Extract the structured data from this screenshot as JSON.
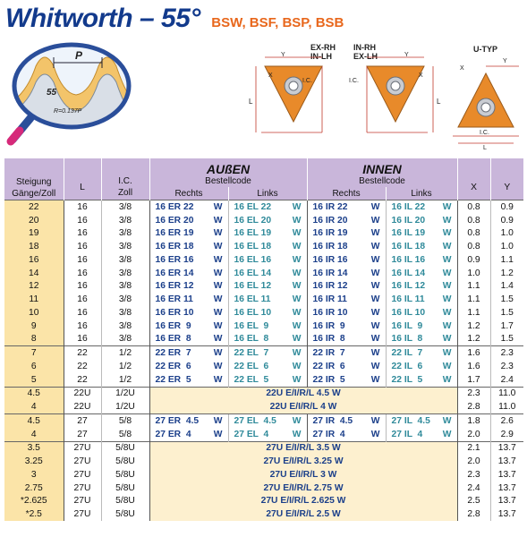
{
  "header": {
    "title": "Whitworth – 55°",
    "subtitle": "BSW, BSF, BSP, BSB"
  },
  "illustration": {
    "pitch_label": "P",
    "angle_label": "55",
    "radius_label": "R=0.137P"
  },
  "diagrams": [
    {
      "label1": "EX-RH",
      "label2": "IN-LH",
      "ic": "I.C.",
      "x": "X",
      "y": "Y",
      "l": "L"
    },
    {
      "label1": "IN-RH",
      "label2": "EX-LH",
      "ic": "I.C.",
      "x": "X",
      "y": "Y",
      "l": "L"
    },
    {
      "label1": "U-TYP",
      "label2": "",
      "ic": "I.C.",
      "x": "X",
      "y": "Y",
      "l": "L"
    }
  ],
  "colors": {
    "header_bg": "#c9b6da",
    "steigung_bg": "#fbe4a8",
    "title_blue": "#123a8c",
    "subtitle_orange": "#e8671c",
    "code_blue": "#1b3f8a",
    "code_teal": "#2f8a9a",
    "insert_orange": "#e88a2a"
  },
  "table": {
    "head": {
      "steigung1": "Steigung",
      "steigung2": "Gänge/Zoll",
      "l": "L",
      "ic1": "I.C.",
      "ic2": "Zoll",
      "aussen": "AUßEN",
      "innen": "INNEN",
      "bestellcode": "Bestellcode",
      "rechts": "Rechts",
      "links": "Links",
      "x": "X",
      "y": "Y"
    },
    "rows": [
      {
        "s": "22",
        "l": "16",
        "ic": "3/8",
        "ar": "16 ER 22",
        "al": "16 EL 22",
        "ir": "16 IR 22",
        "il": "16 IL 22",
        "w": "W",
        "x": "0.8",
        "y": "0.9"
      },
      {
        "s": "20",
        "l": "16",
        "ic": "3/8",
        "ar": "16 ER 20",
        "al": "16 EL 20",
        "ir": "16 IR 20",
        "il": "16 IL 20",
        "w": "W",
        "x": "0.8",
        "y": "0.9"
      },
      {
        "s": "19",
        "l": "16",
        "ic": "3/8",
        "ar": "16 ER 19",
        "al": "16 EL 19",
        "ir": "16 IR 19",
        "il": "16 IL 19",
        "w": "W",
        "x": "0.8",
        "y": "1.0"
      },
      {
        "s": "18",
        "l": "16",
        "ic": "3/8",
        "ar": "16 ER 18",
        "al": "16 EL 18",
        "ir": "16 IR 18",
        "il": "16 IL 18",
        "w": "W",
        "x": "0.8",
        "y": "1.0"
      },
      {
        "s": "16",
        "l": "16",
        "ic": "3/8",
        "ar": "16 ER 16",
        "al": "16 EL 16",
        "ir": "16 IR 16",
        "il": "16 IL 16",
        "w": "W",
        "x": "0.9",
        "y": "1.1"
      },
      {
        "s": "14",
        "l": "16",
        "ic": "3/8",
        "ar": "16 ER 14",
        "al": "16 EL 14",
        "ir": "16 IR 14",
        "il": "16 IL 14",
        "w": "W",
        "x": "1.0",
        "y": "1.2"
      },
      {
        "s": "12",
        "l": "16",
        "ic": "3/8",
        "ar": "16 ER 12",
        "al": "16 EL 12",
        "ir": "16 IR 12",
        "il": "16 IL 12",
        "w": "W",
        "x": "1.1",
        "y": "1.4"
      },
      {
        "s": "11",
        "l": "16",
        "ic": "3/8",
        "ar": "16 ER 11",
        "al": "16 EL 11",
        "ir": "16 IR 11",
        "il": "16 IL 11",
        "w": "W",
        "x": "1.1",
        "y": "1.5"
      },
      {
        "s": "10",
        "l": "16",
        "ic": "3/8",
        "ar": "16 ER 10",
        "al": "16 EL 10",
        "ir": "16 IR 10",
        "il": "16 IL 10",
        "w": "W",
        "x": "1.1",
        "y": "1.5"
      },
      {
        "s": "9",
        "l": "16",
        "ic": "3/8",
        "ar": "16 ER  9",
        "al": "16 EL  9",
        "ir": "16 IR  9",
        "il": "16 IL  9",
        "w": "W",
        "x": "1.2",
        "y": "1.7"
      },
      {
        "s": "8",
        "l": "16",
        "ic": "3/8",
        "ar": "16 ER  8",
        "al": "16 EL  8",
        "ir": "16 IR  8",
        "il": "16 IL  8",
        "w": "W",
        "x": "1.2",
        "y": "1.5"
      },
      {
        "s": "7",
        "l": "22",
        "ic": "1/2",
        "ar": "22 ER  7",
        "al": "22 EL  7",
        "ir": "22 IR  7",
        "il": "22 IL  7",
        "w": "W",
        "x": "1.6",
        "y": "2.3"
      },
      {
        "s": "6",
        "l": "22",
        "ic": "1/2",
        "ar": "22 ER  6",
        "al": "22 EL  6",
        "ir": "22 IR  6",
        "il": "22 IL  6",
        "w": "W",
        "x": "1.6",
        "y": "2.3"
      },
      {
        "s": "5",
        "l": "22",
        "ic": "1/2",
        "ar": "22 ER  5",
        "al": "22 EL  5",
        "ir": "22 IR  5",
        "il": "22 IL  5",
        "w": "W",
        "x": "1.7",
        "y": "2.4"
      },
      {
        "s": "4.5",
        "l": "22U",
        "ic": "1/2U",
        "span": "22U E/I/R/L 4.5 W",
        "x": "2.3",
        "y": "11.0"
      },
      {
        "s": "4",
        "l": "22U",
        "ic": "1/2U",
        "span": "22U E/I/R/L 4   W",
        "x": "2.8",
        "y": "11.0"
      },
      {
        "s": "4.5",
        "l": "27",
        "ic": "5/8",
        "ar": "27 ER  4.5",
        "al": "27 EL  4.5",
        "ir": "27 IR  4.5",
        "il": "27 IL  4.5",
        "w": "W",
        "x": "1.8",
        "y": "2.6"
      },
      {
        "s": "4",
        "l": "27",
        "ic": "5/8",
        "ar": "27 ER  4",
        "al": "27 EL  4",
        "ir": "27 IR  4",
        "il": "27 IL  4",
        "w": "W",
        "x": "2.0",
        "y": "2.9"
      },
      {
        "s": "3.5",
        "l": "27U",
        "ic": "5/8U",
        "span": "27U E/I/R/L 3.5    W",
        "x": "2.1",
        "y": "13.7"
      },
      {
        "s": "3.25",
        "l": "27U",
        "ic": "5/8U",
        "span": "27U E/I/R/L 3.25  W",
        "x": "2.0",
        "y": "13.7"
      },
      {
        "s": "3",
        "l": "27U",
        "ic": "5/8U",
        "span": "27U E/I/R/L 3      W",
        "x": "2.3",
        "y": "13.7"
      },
      {
        "s": "2.75",
        "l": "27U",
        "ic": "5/8U",
        "span": "27U E/I/R/L 2.75  W",
        "x": "2.4",
        "y": "13.7"
      },
      {
        "s": "*2.625",
        "l": "27U",
        "ic": "5/8U",
        "span": "27U E/I/R/L 2.625 W",
        "x": "2.5",
        "y": "13.7"
      },
      {
        "s": "*2.5",
        "l": "27U",
        "ic": "5/8U",
        "span": "27U E/I/R/L 2.5    W",
        "x": "2.8",
        "y": "13.7"
      }
    ]
  }
}
